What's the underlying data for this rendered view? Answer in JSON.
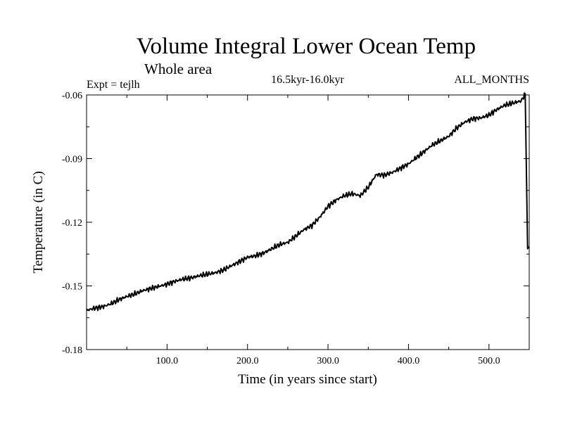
{
  "header": {
    "title": "Volume Integral Lower Ocean Temp",
    "subtitle": "Whole area",
    "expt": "Expt = tejlh",
    "period": "16.5kyr-16.0kyr",
    "months": "ALL_MONTHS"
  },
  "chart_data": {
    "type": "line",
    "title": "Volume Integral Lower Ocean Temp",
    "subtitle": "Whole area",
    "xlabel": "Time (in years since start)",
    "ylabel": "Temperature (in C)",
    "xlim": [
      0,
      550
    ],
    "ylim": [
      -0.18,
      -0.06
    ],
    "x_ticks": [
      100.0,
      200.0,
      300.0,
      400.0,
      500.0
    ],
    "x_tick_labels": [
      "100.0",
      "200.0",
      "300.0",
      "400.0",
      "500.0"
    ],
    "y_ticks": [
      -0.06,
      -0.09,
      -0.12,
      -0.15,
      -0.18
    ],
    "y_tick_labels": [
      "-0.06",
      "-0.09",
      "-0.12",
      "-0.15",
      "-0.18"
    ],
    "grid": false,
    "series": [
      {
        "name": "tejlh",
        "color": "#000000",
        "x": [
          0,
          10,
          20,
          30,
          40,
          50,
          60,
          70,
          80,
          90,
          100,
          110,
          120,
          130,
          140,
          150,
          160,
          170,
          180,
          190,
          200,
          210,
          220,
          230,
          240,
          250,
          260,
          270,
          280,
          290,
          300,
          310,
          320,
          330,
          340,
          350,
          360,
          370,
          380,
          390,
          400,
          410,
          420,
          430,
          440,
          450,
          460,
          470,
          480,
          490,
          500,
          510,
          520,
          530,
          540,
          545,
          548,
          550
        ],
        "y": [
          -0.1615,
          -0.1605,
          -0.1598,
          -0.1585,
          -0.1565,
          -0.155,
          -0.1538,
          -0.1522,
          -0.1512,
          -0.1502,
          -0.1492,
          -0.1478,
          -0.1468,
          -0.1462,
          -0.1452,
          -0.1445,
          -0.1438,
          -0.1425,
          -0.1405,
          -0.1385,
          -0.1365,
          -0.1358,
          -0.1345,
          -0.1325,
          -0.1305,
          -0.1295,
          -0.1265,
          -0.1235,
          -0.1215,
          -0.1175,
          -0.1125,
          -0.1095,
          -0.1075,
          -0.1065,
          -0.1075,
          -0.1035,
          -0.0975,
          -0.0978,
          -0.0965,
          -0.0945,
          -0.0925,
          -0.0895,
          -0.0865,
          -0.0835,
          -0.0815,
          -0.0795,
          -0.0755,
          -0.0728,
          -0.0712,
          -0.0708,
          -0.0695,
          -0.0668,
          -0.0648,
          -0.0638,
          -0.0628,
          -0.0595,
          -0.1325,
          -0.1315
        ]
      }
    ]
  }
}
